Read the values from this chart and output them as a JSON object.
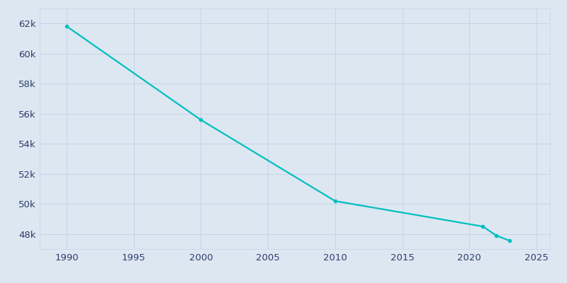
{
  "years": [
    1990,
    2000,
    2010,
    2021,
    2022,
    2023
  ],
  "population": [
    61820,
    55593,
    50193,
    48501,
    47900,
    47554
  ],
  "line_color": "#00BFBF",
  "marker": "o",
  "marker_size": 3,
  "background_color": "#dde7f2",
  "plot_background_color": "#dde7f2",
  "line_width": 1.6,
  "xlim": [
    1988,
    2026
  ],
  "ylim": [
    47000,
    63000
  ],
  "xticks": [
    1990,
    1995,
    2000,
    2005,
    2010,
    2015,
    2020,
    2025
  ],
  "yticks": [
    48000,
    50000,
    52000,
    54000,
    56000,
    58000,
    60000,
    62000
  ],
  "grid_color": "#c5d3e8",
  "tick_color": "#2c3e6b",
  "spine_color": "#c5d3e8",
  "tick_labelsize": 9.5
}
